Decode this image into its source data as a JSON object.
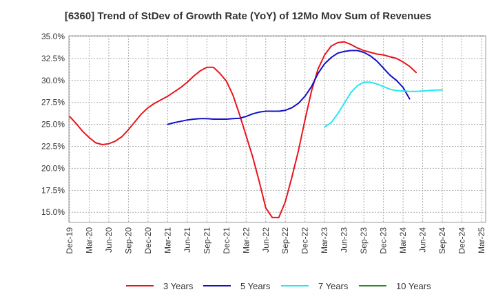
{
  "chart_data": {
    "type": "line",
    "title": "[6360]  Trend of StDev of Growth Rate (YoY) of 12Mo Mov Sum of Revenues",
    "xlabel": "",
    "ylabel": "",
    "ylim": [
      14.0,
      35.0
    ],
    "grid": true,
    "legend_position": "bottom",
    "x_ticks": [
      "Dec-19",
      "Mar-20",
      "Jun-20",
      "Sep-20",
      "Dec-20",
      "Mar-21",
      "Jun-21",
      "Sep-21",
      "Dec-21",
      "Mar-22",
      "Jun-22",
      "Sep-22",
      "Dec-22",
      "Mar-23",
      "Jun-23",
      "Sep-23",
      "Dec-23",
      "Mar-24",
      "Jun-24",
      "Sep-24",
      "Dec-24",
      "Mar-25"
    ],
    "y_ticks": [
      15.0,
      17.5,
      20.0,
      22.5,
      25.0,
      27.5,
      30.0,
      32.5,
      35.0
    ],
    "y_tick_labels": [
      "15.0%",
      "17.5%",
      "20.0%",
      "22.5%",
      "25.0%",
      "27.5%",
      "30.0%",
      "32.5%",
      "35.0%"
    ],
    "series": [
      {
        "name": "3 Years",
        "color": "#e8141c",
        "start_month_index": 0,
        "values": [
          25.9,
          25.1,
          24.2,
          23.5,
          22.9,
          22.7,
          22.8,
          23.1,
          23.6,
          24.4,
          25.3,
          26.2,
          26.9,
          27.4,
          27.8,
          28.2,
          28.7,
          29.2,
          29.8,
          30.5,
          31.1,
          31.5,
          31.5,
          30.8,
          29.9,
          28.3,
          26.1,
          23.7,
          21.3,
          18.5,
          15.5,
          14.4,
          14.4,
          16.2,
          19.0,
          22.0,
          25.5,
          28.8,
          31.3,
          32.9,
          33.9,
          34.3,
          34.4,
          34.1,
          33.7,
          33.4,
          33.2,
          33.0,
          32.9,
          32.7,
          32.5,
          32.1,
          31.6,
          30.9
        ]
      },
      {
        "name": "5 Years",
        "color": "#1010c8",
        "start_month_index": 15,
        "values": [
          25.0,
          25.2,
          25.35,
          25.5,
          25.6,
          25.65,
          25.65,
          25.6,
          25.6,
          25.6,
          25.65,
          25.7,
          25.9,
          26.2,
          26.4,
          26.5,
          26.5,
          26.5,
          26.6,
          26.9,
          27.4,
          28.2,
          29.3,
          30.8,
          31.9,
          32.6,
          33.1,
          33.3,
          33.4,
          33.4,
          33.2,
          32.8,
          32.2,
          31.4,
          30.6,
          30.0,
          29.2,
          27.9
        ]
      },
      {
        "name": "7 Years",
        "color": "#22e8f0",
        "start_month_index": 39,
        "values": [
          24.7,
          25.2,
          26.2,
          27.4,
          28.6,
          29.4,
          29.8,
          29.8,
          29.6,
          29.3,
          29.0,
          28.85,
          28.8,
          28.75,
          28.75,
          28.8,
          28.85,
          28.9,
          28.9
        ]
      },
      {
        "name": "10 Years",
        "color": "#2a8a22",
        "start_month_index": 0,
        "values": []
      }
    ]
  }
}
